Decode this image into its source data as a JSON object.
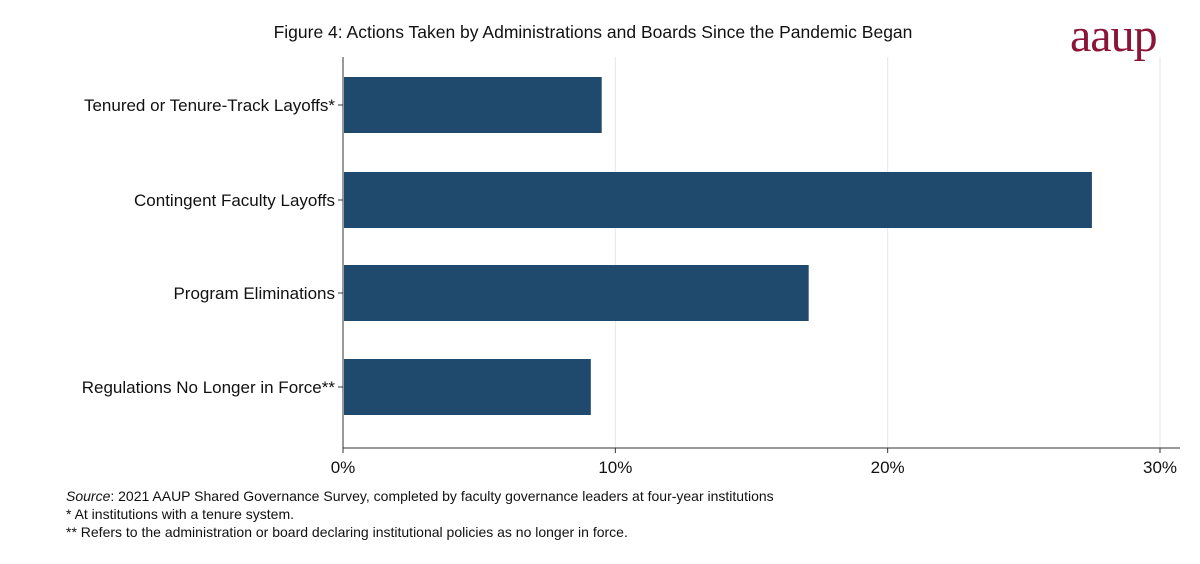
{
  "logo_text": "aaup",
  "chart_data": {
    "type": "bar",
    "orientation": "horizontal",
    "title": "Figure 4: Actions Taken by Administrations and Boards Since the Pandemic Began",
    "xlabel": "",
    "ylabel": "",
    "categories": [
      "Tenured or Tenure-Track Layoffs*",
      "Contingent Faculty Layoffs",
      "Program Eliminations",
      "Regulations No Longer in Force**"
    ],
    "values": [
      9.5,
      27.5,
      17.1,
      9.1
    ],
    "value_unit": "%",
    "xlim": [
      0,
      30
    ],
    "xticks": [
      0,
      10,
      20,
      30
    ],
    "xtick_labels": [
      "0%",
      "10%",
      "20%",
      "30%"
    ],
    "grid": "vertical",
    "colors": {
      "bar": "#1f4a6e",
      "grid": "#e6e6e6",
      "axis": "#333333",
      "logo": "#8a1538"
    }
  },
  "notes": {
    "source_label": "Source",
    "source_text": ": 2021 AAUP Shared Governance Survey, completed by faculty governance leaders at four-year institutions",
    "footnote1": "* At institutions with a tenure system.",
    "footnote2": "** Refers to the administration or board declaring institutional policies as no longer in force."
  }
}
